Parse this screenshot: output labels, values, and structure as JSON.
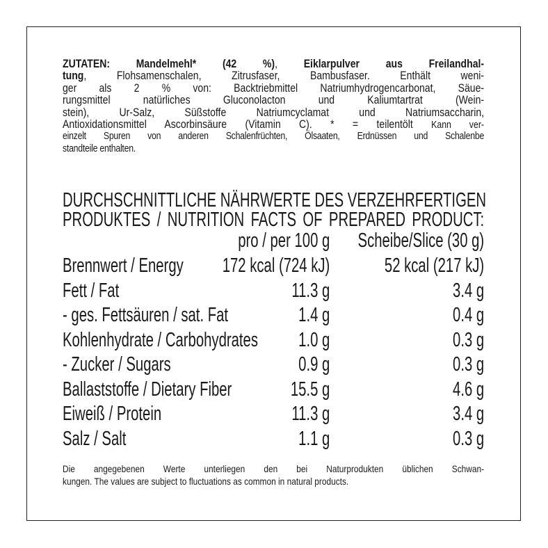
{
  "ingredients": [
    [
      {
        "t": "ZUTATEN: Mandelmehl* (42 %)",
        "b": true
      },
      {
        "t": ", ",
        "b": false
      },
      {
        "t": "Eiklarpulver aus Freilandhal-",
        "b": true
      }
    ],
    [
      {
        "t": "tung",
        "b": true
      },
      {
        "t": ", Flohsamenschalen, Zitrusfaser, Bambusfaser. Enthält weni-",
        "b": false
      }
    ],
    [
      {
        "t": "ger als 2 % von: Backtriebmittel Natriumhydrogencarbonat, Säue-",
        "b": false
      }
    ],
    [
      {
        "t": "rungsmittel natürliches Gluconolacton und Kaliumtartrat (Wein-",
        "b": false
      }
    ],
    [
      {
        "t": "stein), Ur-Salz, Süßstoffe Natriumcyclamat und Natriumsaccharin,",
        "b": false
      }
    ],
    [
      {
        "t": "Antioxidationsmittel Ascorbinsäure (Vitamin C). * = teilentölt ",
        "b": false
      },
      {
        "t": "Kann ver-",
        "b": false,
        "s": true
      }
    ],
    [
      {
        "t": "einzelt Spuren von anderen Schalenfrüchten, Ölsaaten, Erdnüssen und Schalenbe",
        "b": false
      }
    ],
    [
      {
        "t": "standteile enthalten.",
        "b": false
      }
    ]
  ],
  "nutrition": {
    "title_lines": [
      "DURCHSCHNITTLICHE NÄHRWERTE DES VERZEHRFERTIGEN",
      "PRODUKTES / NUTRITION FACTS OF PREPARED PRODUCT:"
    ],
    "columns": [
      "pro / per 100 g",
      "Scheibe/Slice (30 g)"
    ],
    "rows": [
      {
        "label": "Brennwert / Energy",
        "per100": "172 kcal (724 kJ)",
        "slice": "52 kcal (217 kJ)"
      },
      {
        "label": "Fett / Fat",
        "per100": "11.3 g",
        "slice": "3.4 g"
      },
      {
        "label": "- ges. Fettsäuren / sat. Fat",
        "per100": "1.4 g",
        "slice": "0.4 g"
      },
      {
        "label": "Kohlenhydrate / Carbohydrates",
        "per100": "1.0 g",
        "slice": "0.3 g"
      },
      {
        "label": "- Zucker / Sugars",
        "per100": "0.9 g",
        "slice": "0.3 g"
      },
      {
        "label": "Ballaststoffe / Dietary Fiber",
        "per100": "15.5 g",
        "slice": "4.6 g"
      },
      {
        "label": "Eiweiß / Protein",
        "per100": "11.3 g",
        "slice": "3.4 g"
      },
      {
        "label": "Salz / Salt",
        "per100": "1.1 g",
        "slice": "0.3 g"
      }
    ]
  },
  "footer": [
    "Die angegebenen Werte unterliegen den bei Naturprodukten üblichen Schwan-",
    "kungen. The values are subject to fluctuations as common in natural products."
  ]
}
